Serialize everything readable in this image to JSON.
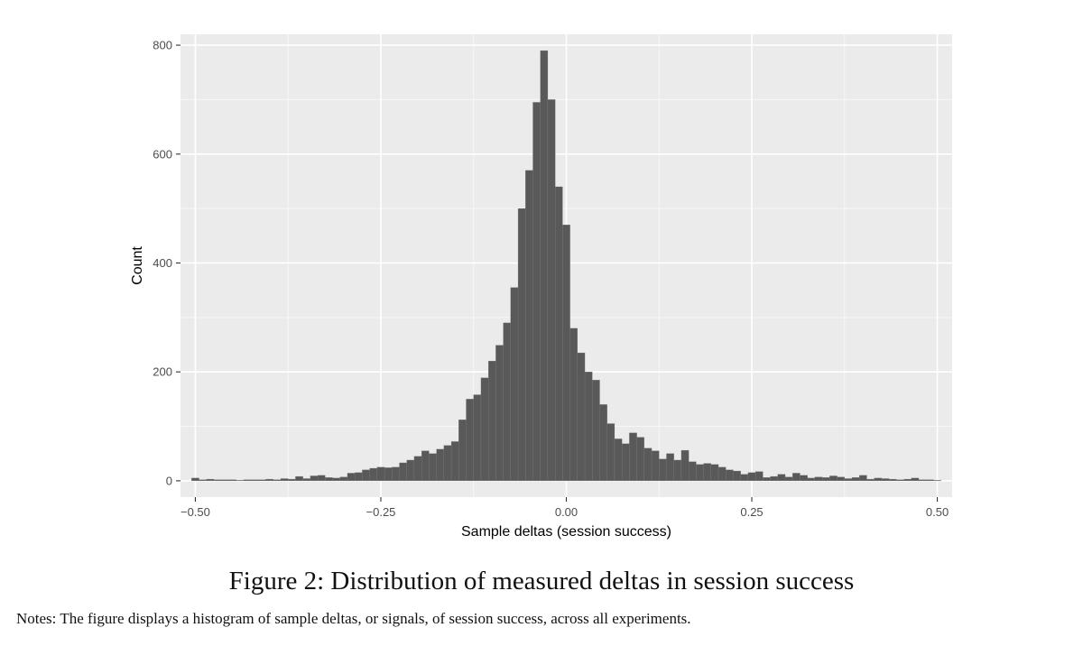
{
  "chart_data": {
    "type": "bar",
    "subtype": "histogram",
    "xlabel": "Sample deltas (session success)",
    "ylabel": "Count",
    "xlim": [
      -0.52,
      0.52
    ],
    "ylim": [
      -30,
      820
    ],
    "x_ticks": [
      -0.5,
      -0.25,
      0.0,
      0.25,
      0.5
    ],
    "x_tick_labels": [
      "−0.50",
      "−0.25",
      "0.00",
      "0.25",
      "0.50"
    ],
    "y_ticks": [
      0,
      200,
      400,
      600,
      800
    ],
    "y_tick_labels": [
      "0",
      "200",
      "400",
      "600",
      "800"
    ],
    "grid": true,
    "panel_background": "#ebebeb",
    "bar_color": "#595959",
    "bin_width": 0.01,
    "bin_start": -0.5,
    "counts": [
      5,
      2,
      3,
      2,
      2,
      2,
      1,
      2,
      2,
      2,
      3,
      2,
      4,
      3,
      8,
      4,
      9,
      10,
      6,
      5,
      7,
      14,
      15,
      20,
      23,
      25,
      24,
      25,
      33,
      38,
      45,
      55,
      50,
      58,
      65,
      72,
      112,
      150,
      158,
      189,
      220,
      249,
      290,
      355,
      500,
      570,
      695,
      790,
      700,
      540,
      470,
      280,
      235,
      200,
      185,
      140,
      105,
      77,
      68,
      88,
      80,
      60,
      55,
      40,
      50,
      38,
      56,
      35,
      30,
      32,
      30,
      25,
      20,
      18,
      12,
      15,
      17,
      6,
      8,
      12,
      7,
      14,
      10,
      5,
      7,
      6,
      9,
      7,
      4,
      6,
      10,
      3,
      5,
      4,
      3,
      2,
      3,
      5,
      2,
      2,
      1
    ]
  },
  "figure": {
    "caption": "Figure 2: Distribution of measured deltas in session success",
    "notes": "Notes: The figure displays a histogram of sample deltas, or signals, of session success, across all experiments."
  }
}
